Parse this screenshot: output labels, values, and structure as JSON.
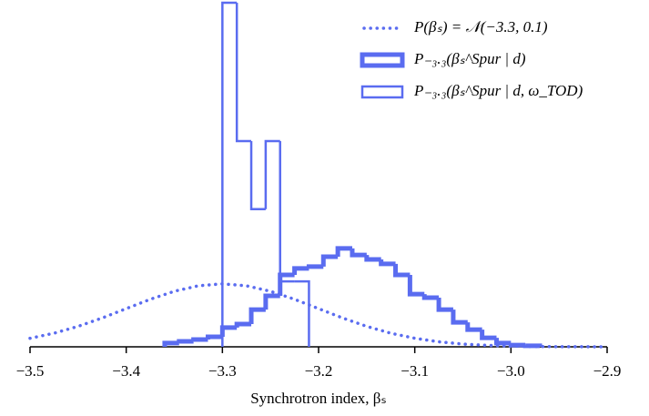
{
  "chart_data": {
    "type": "histogram",
    "x_label": "Synchrotron index, βₛ",
    "xlim": [
      -3.5,
      -2.9
    ],
    "ylim": [
      0,
      1
    ],
    "xticks": [
      {
        "value": -3.5,
        "label": "−3.5"
      },
      {
        "value": -3.4,
        "label": "−3.4"
      },
      {
        "value": -3.3,
        "label": "−3.3"
      },
      {
        "value": -3.2,
        "label": "−3.2"
      },
      {
        "value": -3.1,
        "label": "−3.1"
      },
      {
        "value": -3.0,
        "label": "−3.0"
      },
      {
        "value": -2.9,
        "label": "−2.9"
      }
    ],
    "legend": "upper right",
    "series": [
      {
        "name": "P(βₛ) = 𝒩(−3.3, 0.1)",
        "type": "line",
        "color": "#5a6cf0",
        "style": "dotted",
        "x": [
          -3.5,
          -3.475,
          -3.45,
          -3.425,
          -3.4,
          -3.375,
          -3.35,
          -3.325,
          -3.3,
          -3.275,
          -3.25,
          -3.225,
          -3.2,
          -3.175,
          -3.15,
          -3.125,
          -3.1,
          -3.075,
          -3.05,
          -3.025,
          -3.0,
          -2.975,
          -2.95,
          -2.925,
          -2.9
        ],
        "values": [
          0.0248,
          0.0396,
          0.0595,
          0.0838,
          0.111,
          0.1381,
          0.1614,
          0.1774,
          0.183,
          0.1774,
          0.1614,
          0.1381,
          0.111,
          0.0838,
          0.0595,
          0.0396,
          0.0248,
          0.0146,
          0.008,
          0.0042,
          0.002,
          0.0009,
          0.0004,
          0.0002,
          0.0001
        ]
      },
      {
        "name": "P₋₃.₃(βₛ^Spur | d)",
        "type": "histogram",
        "color": "#5a6cf0",
        "linewidth": 5,
        "bins": [
          -3.36,
          -3.345,
          -3.33,
          -3.315,
          -3.3,
          -3.285,
          -3.27,
          -3.255,
          -3.24,
          -3.225,
          -3.21,
          -3.195,
          -3.18,
          -3.165,
          -3.15,
          -3.135,
          -3.12,
          -3.105,
          -3.09,
          -3.075,
          -3.06,
          -3.045,
          -3.03,
          -3.015,
          -3.0,
          -2.985,
          -2.97
        ],
        "values": [
          0.011,
          0.016,
          0.021,
          0.029,
          0.056,
          0.066,
          0.108,
          0.148,
          0.209,
          0.228,
          0.233,
          0.262,
          0.286,
          0.267,
          0.254,
          0.241,
          0.209,
          0.153,
          0.143,
          0.108,
          0.071,
          0.05,
          0.026,
          0.011,
          0.005,
          0.003
        ]
      },
      {
        "name": "P₋₃.₃(βₛ^Spur | d, ω_TOD)",
        "type": "histogram",
        "color": "#5a6cf0",
        "linewidth": 2.5,
        "bins": [
          -3.3,
          -3.285,
          -3.27,
          -3.255,
          -3.24,
          -3.225,
          -3.21
        ],
        "values": [
          1.0,
          0.598,
          0.4,
          0.598,
          0.19,
          0.19
        ]
      }
    ]
  }
}
